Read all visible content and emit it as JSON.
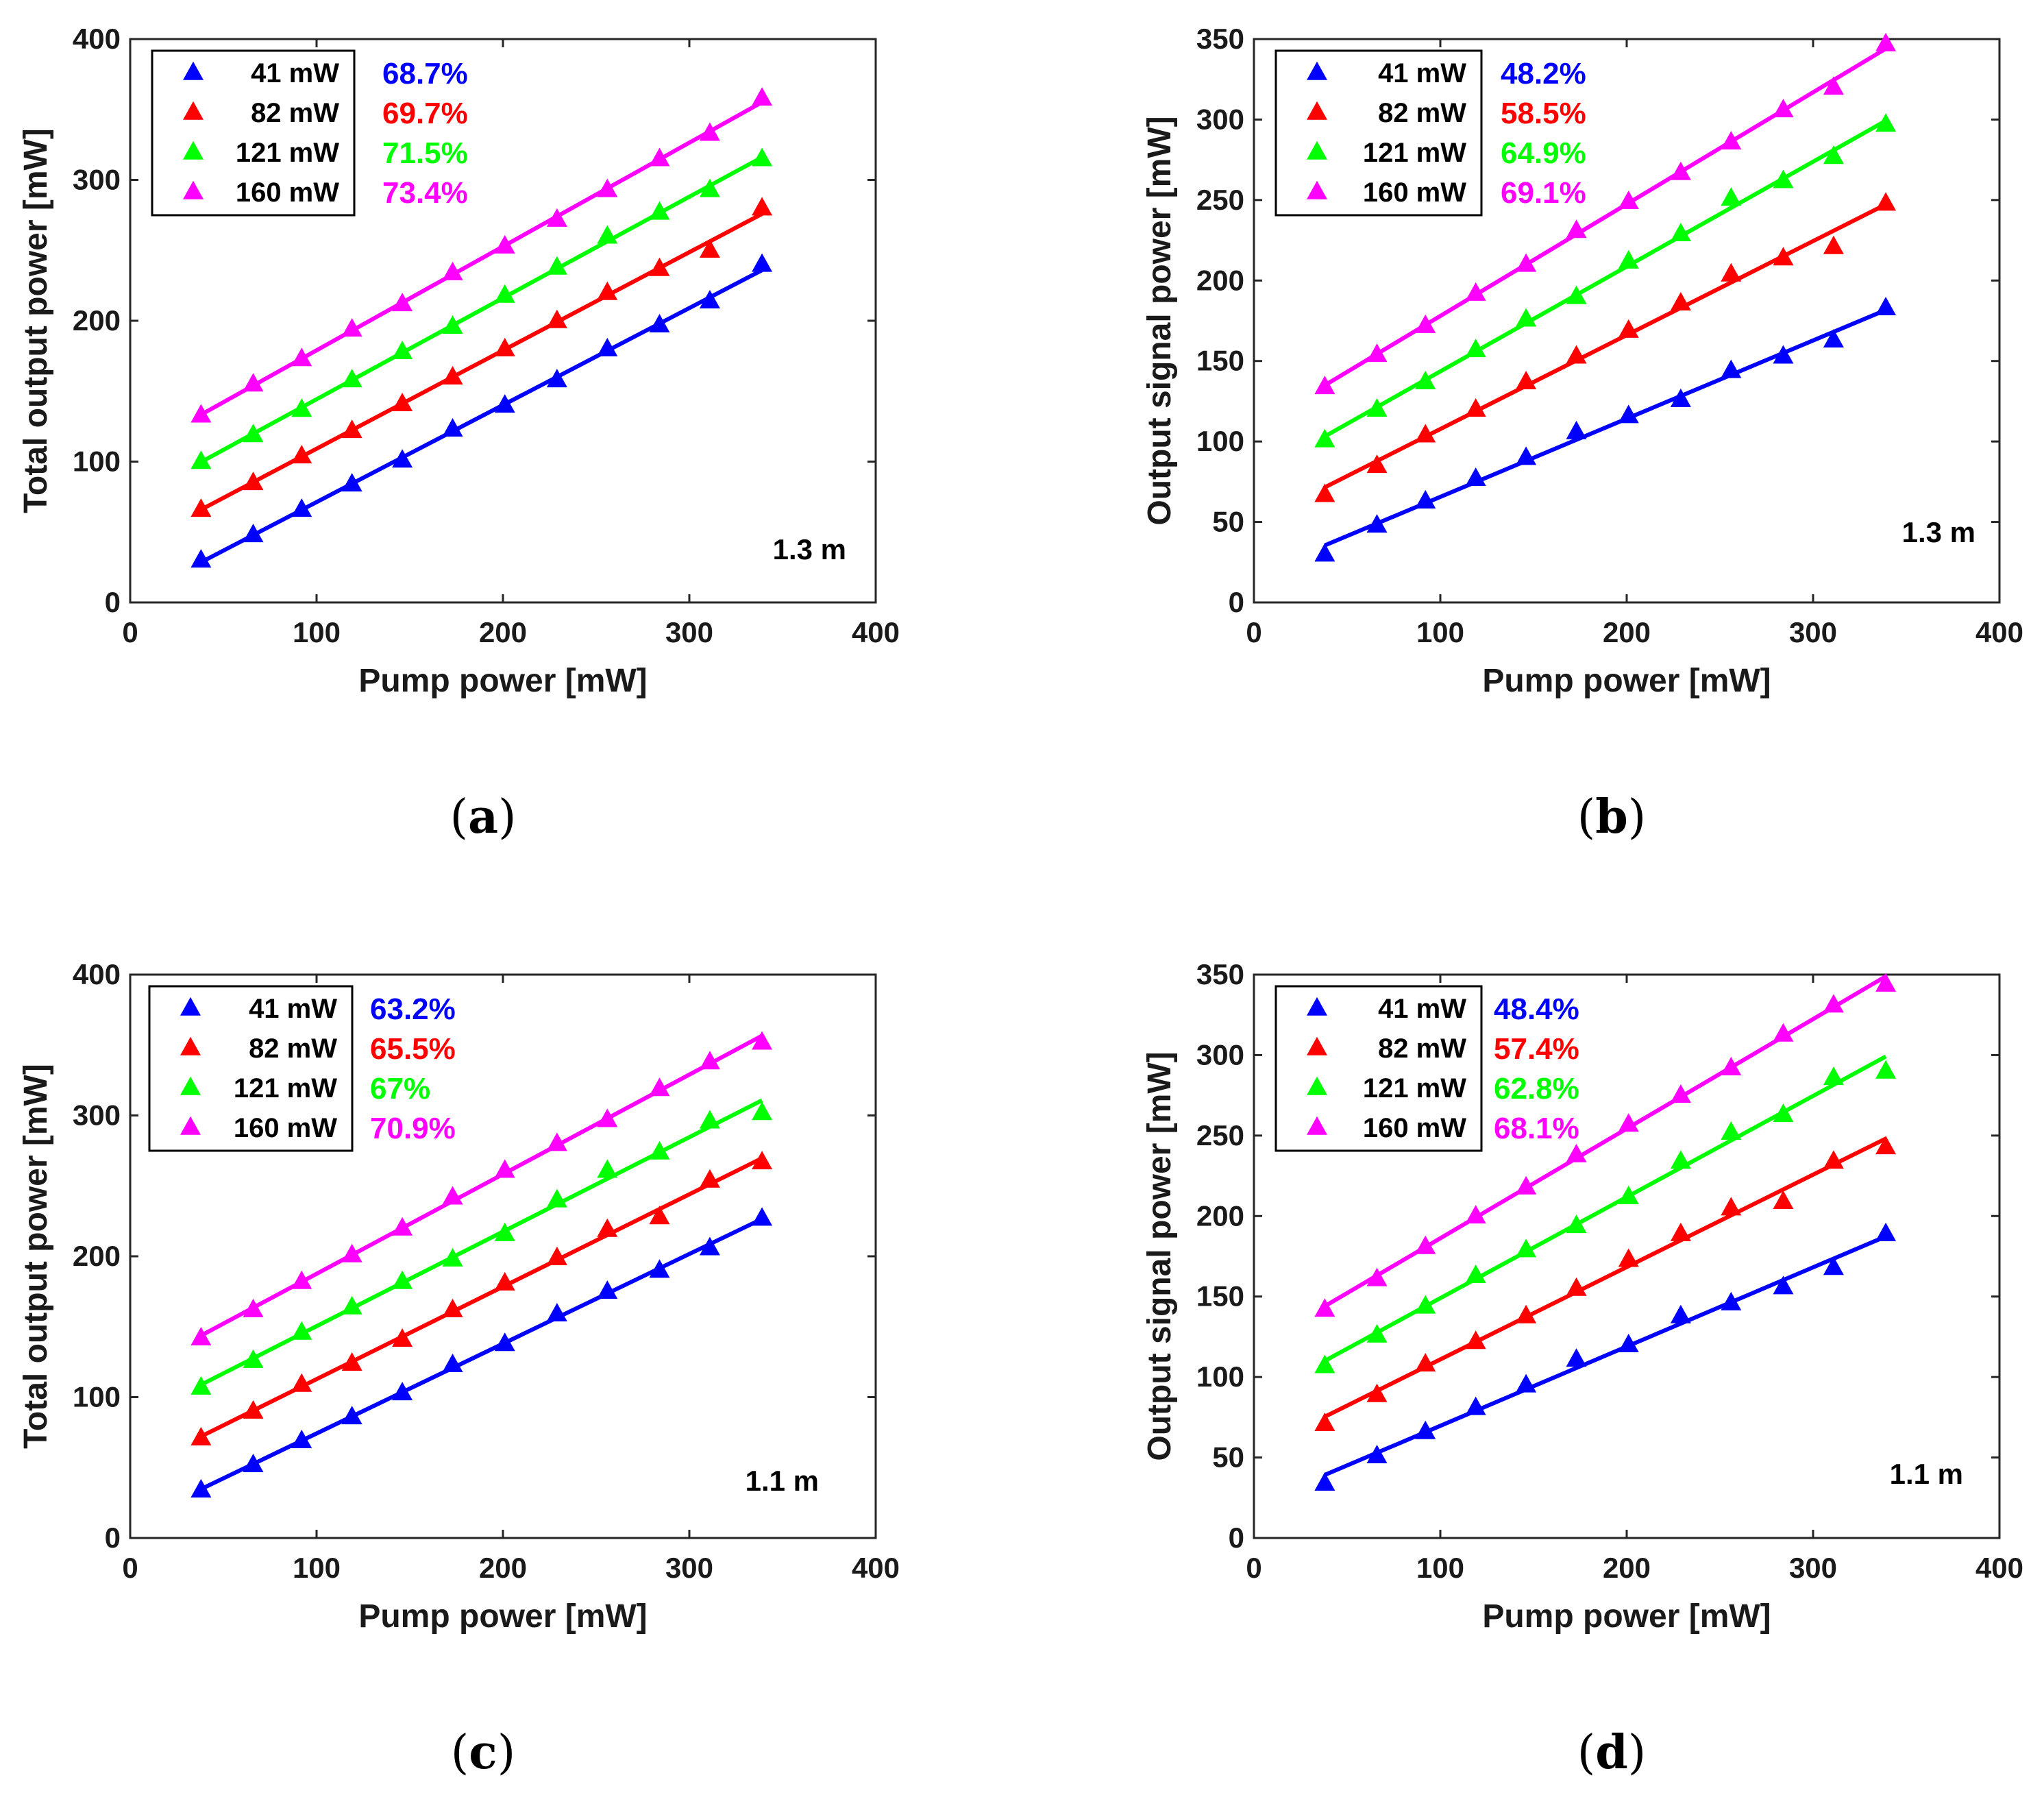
{
  "chart_data": [
    {
      "type": "scatter",
      "panel": "(a)",
      "caption_letter": "a",
      "xlabel": "Pump power [mW]",
      "ylabel": "Total output power [mW]",
      "xlim": [
        0,
        400
      ],
      "ylim": [
        0,
        400
      ],
      "xticks": [
        0,
        100,
        200,
        300,
        400
      ],
      "yticks": [
        0,
        100,
        200,
        300,
        400
      ],
      "annotation": "1.3 m",
      "x": [
        38,
        66,
        92,
        119,
        146,
        173,
        201,
        229,
        256,
        284,
        311,
        339
      ],
      "series": [
        {
          "name": "41 mW",
          "efficiency": "68.7%",
          "color": "#0000ff",
          "values": [
            30,
            48,
            66,
            84,
            101,
            123,
            140,
            158,
            180,
            197,
            214,
            240
          ]
        },
        {
          "name": "82 mW",
          "efficiency": "69.7%",
          "color": "#ff0000",
          "values": [
            66,
            85,
            104,
            122,
            141,
            160,
            180,
            200,
            220,
            237,
            250,
            280
          ]
        },
        {
          "name": "121 mW",
          "efficiency": "71.5%",
          "color": "#00ff00",
          "values": [
            100,
            119,
            137,
            158,
            178,
            196,
            218,
            238,
            260,
            277,
            293,
            315
          ]
        },
        {
          "name": "160 mW",
          "efficiency": "73.4%",
          "color": "#ff00ff",
          "values": [
            133,
            155,
            173,
            194,
            212,
            234,
            253,
            272,
            293,
            315,
            333,
            358
          ]
        }
      ]
    },
    {
      "type": "scatter",
      "panel": "(b)",
      "caption_letter": "b",
      "xlabel": "Pump power [mW]",
      "ylabel": "Output signal power [mW]",
      "xlim": [
        0,
        400
      ],
      "ylim": [
        0,
        350
      ],
      "xticks": [
        0,
        100,
        200,
        300,
        400
      ],
      "yticks": [
        0,
        50,
        100,
        150,
        200,
        250,
        300,
        350
      ],
      "annotation": "1.3 m",
      "x": [
        38,
        66,
        92,
        119,
        146,
        173,
        201,
        229,
        256,
        284,
        311,
        339
      ],
      "series": [
        {
          "name": "41 mW",
          "efficiency": "48.2%",
          "color": "#0000ff",
          "values": [
            30,
            48,
            63,
            77,
            90,
            106,
            116,
            126,
            144,
            153,
            163,
            183
          ]
        },
        {
          "name": "82 mW",
          "efficiency": "58.5%",
          "color": "#ff0000",
          "values": [
            67,
            85,
            104,
            120,
            137,
            153,
            169,
            186,
            204,
            214,
            221,
            248
          ]
        },
        {
          "name": "121 mW",
          "efficiency": "64.9%",
          "color": "#00ff00",
          "values": [
            101,
            120,
            137,
            157,
            176,
            190,
            212,
            229,
            251,
            262,
            277,
            297
          ]
        },
        {
          "name": "160 mW",
          "efficiency": "69.1%",
          "color": "#ff00ff",
          "values": [
            134,
            154,
            172,
            192,
            210,
            231,
            249,
            267,
            286,
            306,
            320,
            347
          ]
        }
      ]
    },
    {
      "type": "scatter",
      "panel": "(c)",
      "caption_letter": "c",
      "xlabel": "Pump power [mW]",
      "ylabel": "Total output power [mW]",
      "xlim": [
        0,
        400
      ],
      "ylim": [
        0,
        400
      ],
      "xticks": [
        0,
        100,
        200,
        300,
        400
      ],
      "yticks": [
        0,
        100,
        200,
        300,
        400
      ],
      "annotation": "1.1 m",
      "x": [
        38,
        66,
        92,
        119,
        146,
        173,
        201,
        229,
        256,
        284,
        311,
        339
      ],
      "series": [
        {
          "name": "41 mW",
          "efficiency": "63.2%",
          "color": "#0000ff",
          "values": [
            34,
            52,
            69,
            86,
            103,
            123,
            138,
            159,
            175,
            190,
            206,
            227
          ]
        },
        {
          "name": "82 mW",
          "efficiency": "65.5%",
          "color": "#ff0000",
          "values": [
            71,
            90,
            109,
            124,
            141,
            162,
            181,
            199,
            219,
            228,
            254,
            267
          ]
        },
        {
          "name": "121 mW",
          "efficiency": "67%",
          "color": "#00ff00",
          "values": [
            107,
            126,
            146,
            164,
            182,
            198,
            216,
            240,
            261,
            274,
            296,
            302
          ]
        },
        {
          "name": "160 mW",
          "efficiency": "70.9%",
          "color": "#ff00ff",
          "values": [
            142,
            162,
            182,
            201,
            220,
            242,
            261,
            280,
            297,
            319,
            338,
            352
          ]
        }
      ]
    },
    {
      "type": "scatter",
      "panel": "(d)",
      "caption_letter": "d",
      "xlabel": "Pump power [mW]",
      "ylabel": "Output signal power [mW]",
      "xlim": [
        0,
        400
      ],
      "ylim": [
        0,
        350
      ],
      "xticks": [
        0,
        100,
        200,
        300,
        400
      ],
      "yticks": [
        0,
        50,
        100,
        150,
        200,
        250,
        300,
        350
      ],
      "annotation": "1.1 m",
      "x": [
        38,
        66,
        92,
        119,
        146,
        173,
        201,
        229,
        256,
        284,
        311,
        339
      ],
      "series": [
        {
          "name": "41 mW",
          "efficiency": "48.4%",
          "color": "#0000ff",
          "values": [
            34,
            51,
            66,
            81,
            95,
            111,
            120,
            138,
            146,
            156,
            168,
            189
          ]
        },
        {
          "name": "82 mW",
          "efficiency": "57.4%",
          "color": "#ff0000",
          "values": [
            71,
            89,
            108,
            122,
            138,
            155,
            173,
            189,
            205,
            209,
            234,
            243
          ]
        },
        {
          "name": "121 mW",
          "efficiency": "62.8%",
          "color": "#00ff00",
          "values": [
            107,
            126,
            144,
            163,
            179,
            194,
            212,
            234,
            252,
            263,
            286,
            290
          ]
        },
        {
          "name": "160 mW",
          "efficiency": "68.1%",
          "color": "#ff00ff",
          "values": [
            142,
            161,
            181,
            200,
            218,
            238,
            257,
            275,
            292,
            313,
            331,
            344
          ]
        }
      ]
    }
  ]
}
